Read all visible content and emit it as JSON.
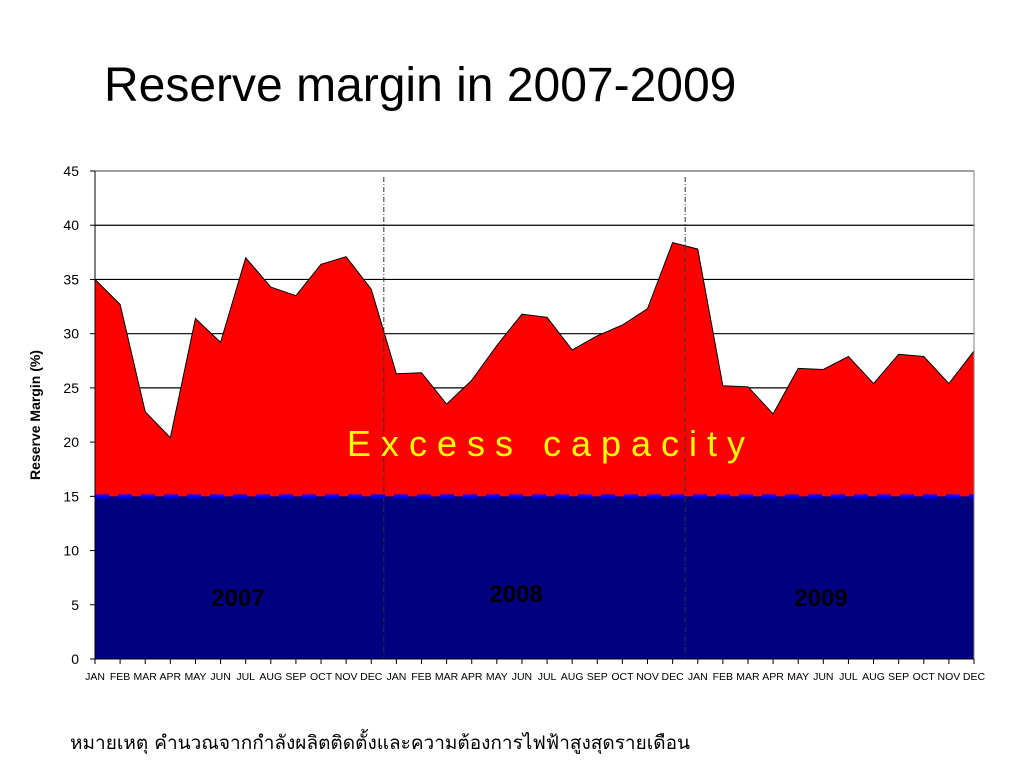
{
  "slide": {
    "title": "Reserve margin in 2007-2009",
    "footnote": "หมายเหตุ คำนวณจากกำลังผลิตติดตั้งและความต้องการไฟฟ้าสูงสุดรายเดือน"
  },
  "chart_data": {
    "type": "area",
    "title": "Reserve margin in 2007-2009",
    "ylabel": "Reserve Margin (%)",
    "xlabel": "",
    "ylim": [
      0,
      45
    ],
    "yticks": [
      0,
      5,
      10,
      15,
      20,
      25,
      30,
      35,
      40,
      45
    ],
    "grid": true,
    "categories": [
      "JAN",
      "FEB",
      "MAR",
      "APR",
      "MAY",
      "JUN",
      "JUL",
      "AUG",
      "SEP",
      "OCT",
      "NOV",
      "DEC",
      "JAN",
      "FEB",
      "MAR",
      "APR",
      "MAY",
      "JUN",
      "JUL",
      "AUG",
      "SEP",
      "OCT",
      "NOV",
      "DEC",
      "JAN",
      "FEB",
      "MAR",
      "APR",
      "MAY",
      "JUN",
      "JUL",
      "AUG",
      "SEP",
      "OCT",
      "NOV",
      "DEC"
    ],
    "series": [
      {
        "values": [
          35.0,
          32.7,
          22.8,
          20.4,
          31.4,
          29.2,
          37.0,
          34.3,
          33.5,
          36.4,
          37.1,
          34.1,
          26.3,
          26.4,
          23.5,
          25.7,
          28.9,
          31.8,
          31.5,
          28.5,
          29.8,
          30.8,
          32.3,
          38.4,
          37.8,
          25.2,
          25.1,
          22.6,
          26.8,
          26.7,
          27.9,
          25.4,
          28.1,
          27.9,
          25.4,
          28.4
        ],
        "color": "#ff0000"
      }
    ],
    "baseline": {
      "value": 15,
      "fill_color": "#000080",
      "line_color": "#0000ff"
    },
    "annotations": {
      "excess": {
        "text": "E x c e s s   c a p a c i t y",
        "color": "#ffff00"
      },
      "years": [
        "2007",
        "2008",
        "2009"
      ],
      "year_color": "#000000"
    }
  }
}
